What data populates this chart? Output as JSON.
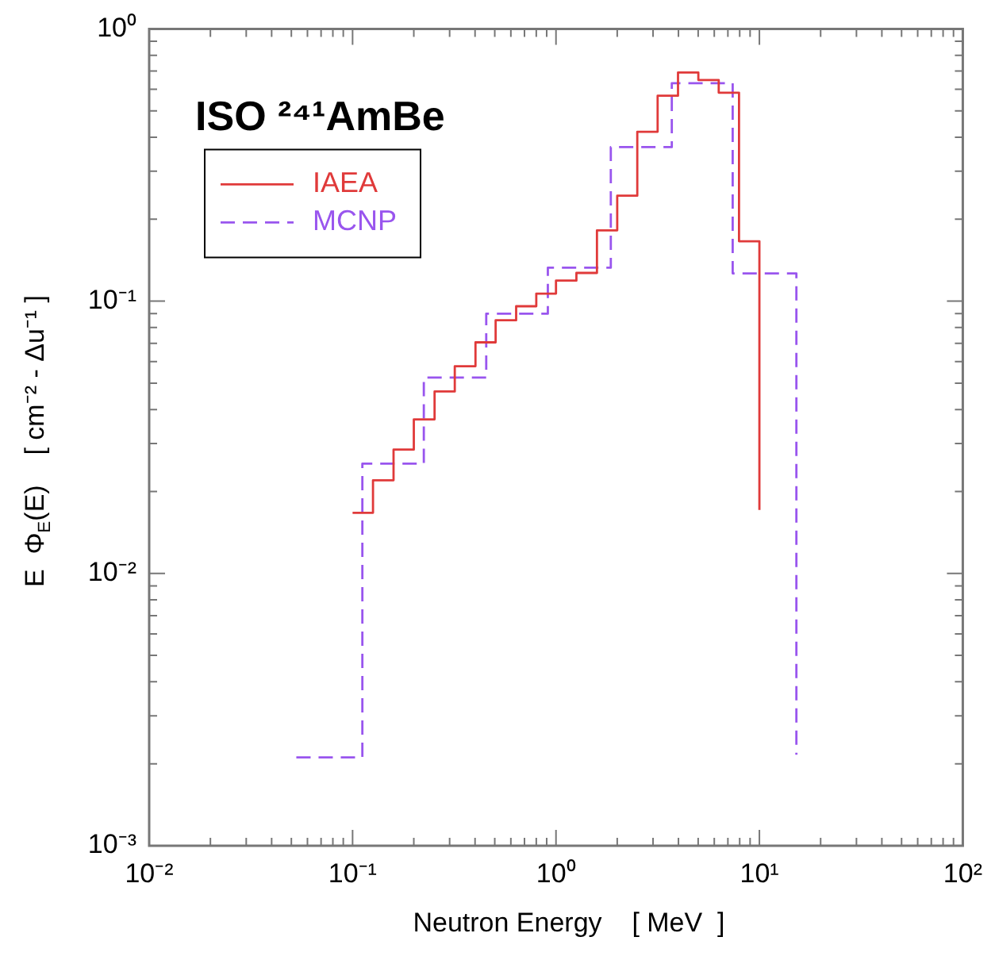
{
  "chart_data": {
    "type": "step",
    "title": "ISO ²⁴¹AmBe",
    "xlabel": "Neutron Energy    [ MeV  ]",
    "ylabel": "E  Φ$_{E}$(E)    [ cm⁻² - Δu⁻¹ ]",
    "log": "xy",
    "xlim": [
      0.01,
      100
    ],
    "ylim": [
      0.001,
      1
    ],
    "xticks": [
      {
        "value": 0.01,
        "label": "10⁻²"
      },
      {
        "value": 0.02,
        "label": null
      },
      {
        "value": 0.03,
        "label": null
      },
      {
        "value": 0.04,
        "label": null
      },
      {
        "value": 0.05,
        "label": null
      },
      {
        "value": 0.06,
        "label": null
      },
      {
        "value": 0.07,
        "label": null
      },
      {
        "value": 0.08,
        "label": null
      },
      {
        "value": 0.09,
        "label": null
      },
      {
        "value": 0.1,
        "label": "10⁻¹"
      },
      {
        "value": 0.2,
        "label": null
      },
      {
        "value": 0.3,
        "label": null
      },
      {
        "value": 0.4,
        "label": null
      },
      {
        "value": 0.5,
        "label": null
      },
      {
        "value": 0.6,
        "label": null
      },
      {
        "value": 0.7,
        "label": null
      },
      {
        "value": 0.8,
        "label": null
      },
      {
        "value": 0.9,
        "label": null
      },
      {
        "value": 1,
        "label": "10⁰"
      },
      {
        "value": 2,
        "label": null
      },
      {
        "value": 3,
        "label": null
      },
      {
        "value": 4,
        "label": null
      },
      {
        "value": 5,
        "label": null
      },
      {
        "value": 6,
        "label": null
      },
      {
        "value": 7,
        "label": null
      },
      {
        "value": 8,
        "label": null
      },
      {
        "value": 9,
        "label": null
      },
      {
        "value": 10,
        "label": "10¹"
      },
      {
        "value": 20,
        "label": null
      },
      {
        "value": 30,
        "label": null
      },
      {
        "value": 40,
        "label": null
      },
      {
        "value": 50,
        "label": null
      },
      {
        "value": 60,
        "label": null
      },
      {
        "value": 70,
        "label": null
      },
      {
        "value": 80,
        "label": null
      },
      {
        "value": 90,
        "label": null
      },
      {
        "value": 100,
        "label": "10²"
      }
    ],
    "yticks": [
      {
        "value": 0.001,
        "label": "10⁻³"
      },
      {
        "value": 0.002,
        "label": null
      },
      {
        "value": 0.003,
        "label": null
      },
      {
        "value": 0.004,
        "label": null
      },
      {
        "value": 0.005,
        "label": null
      },
      {
        "value": 0.006,
        "label": null
      },
      {
        "value": 0.007,
        "label": null
      },
      {
        "value": 0.008,
        "label": null
      },
      {
        "value": 0.009,
        "label": null
      },
      {
        "value": 0.01,
        "label": "10⁻²"
      },
      {
        "value": 0.02,
        "label": null
      },
      {
        "value": 0.03,
        "label": null
      },
      {
        "value": 0.04,
        "label": null
      },
      {
        "value": 0.05,
        "label": null
      },
      {
        "value": 0.06,
        "label": null
      },
      {
        "value": 0.07,
        "label": null
      },
      {
        "value": 0.08,
        "label": null
      },
      {
        "value": 0.09,
        "label": null
      },
      {
        "value": 0.1,
        "label": "10⁻¹"
      },
      {
        "value": 0.2,
        "label": null
      },
      {
        "value": 0.3,
        "label": null
      },
      {
        "value": 0.4,
        "label": null
      },
      {
        "value": 0.5,
        "label": null
      },
      {
        "value": 0.6,
        "label": null
      },
      {
        "value": 0.7,
        "label": null
      },
      {
        "value": 0.8,
        "label": null
      },
      {
        "value": 0.9,
        "label": null
      },
      {
        "value": 1,
        "label": "10⁰"
      }
    ],
    "legend": "top left",
    "marker": "none",
    "series": [
      {
        "name": "IAEA",
        "color": "#e03a3a",
        "line_style": "solid",
        "x": [
          0.1,
          0.126,
          0.159,
          0.2,
          0.253,
          0.318,
          0.402,
          0.505,
          0.637,
          0.8,
          1.0,
          1.26,
          1.59,
          2.0,
          2.51,
          3.16,
          3.98,
          5.01,
          6.31,
          7.94,
          10
        ],
        "values": [
          0.0167,
          0.022,
          0.0285,
          0.0368,
          0.0466,
          0.0577,
          0.0706,
          0.0851,
          0.0958,
          0.1066,
          0.119,
          0.127,
          0.182,
          0.244,
          0.419,
          0.568,
          0.692,
          0.649,
          0.583,
          0.166,
          0.0171
        ]
      },
      {
        "name": "MCNP",
        "color": "#9955ee",
        "line_style": "dashed",
        "x": [
          0.0529,
          0.1117,
          0.224,
          0.454,
          0.912,
          1.86,
          3.71,
          7.39,
          15.2
        ],
        "values": [
          0.00211,
          0.0253,
          0.0524,
          0.0899,
          0.1327,
          0.368,
          0.632,
          0.1265,
          0.00216
        ]
      }
    ]
  }
}
